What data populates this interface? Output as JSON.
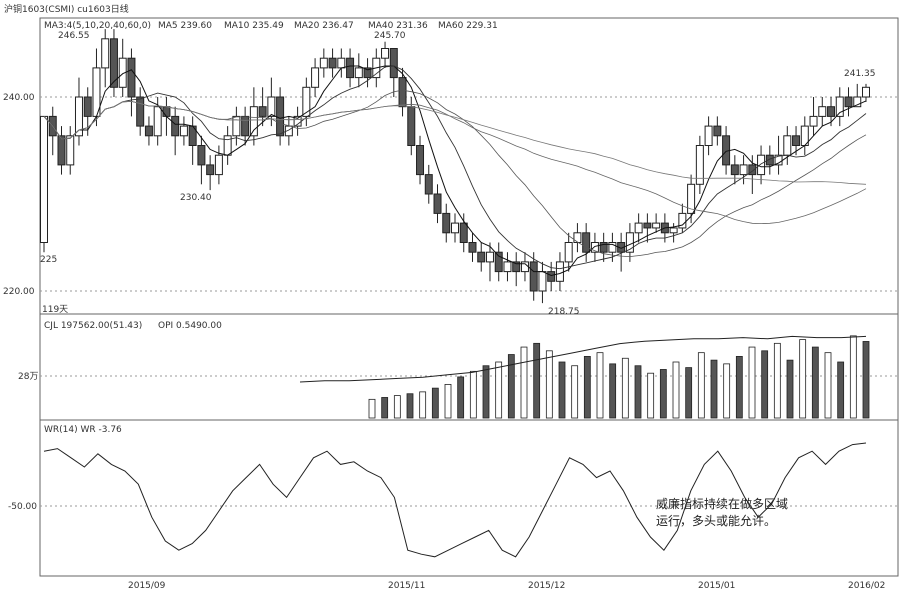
{
  "header": {
    "window_label": "沪铜1603(CSMI) cu1603日线",
    "ma_legend": "MA3:4(5,10,20,40,60,0)",
    "ma5": "MA5 239.60",
    "ma10": "MA10 235.49",
    "ma20": "MA20 236.47",
    "ma40": "MA40 231.36",
    "ma60": "MA60 229.31"
  },
  "price_panel": {
    "y_ticks": [
      "240.00",
      "220.00"
    ],
    "annotations": [
      "246.55",
      "245.70",
      "241.35",
      "230.40",
      "218.75",
      "225"
    ]
  },
  "volume_panel": {
    "days_label": "119天",
    "legend_cjl": "CJL 197562.00(51.43)",
    "legend_opi": "OPI 0.5490.00",
    "y_tick": "28万"
  },
  "wr_panel": {
    "legend": "WR(14) WR -3.76",
    "y_tick": "-50.00",
    "note_line1": "威廉指标持续在做多区域",
    "note_line2": "运行，多头或能允许。"
  },
  "x_axis": {
    "ticks": [
      "2015/09",
      "2015/11",
      "2015/12",
      "2015/01",
      "2016/02"
    ]
  },
  "colors": {
    "up": "#ffffff",
    "down": "#555555",
    "line": "#222222",
    "grid": "#9a9a9a"
  },
  "chart_data": {
    "type": "candlestick",
    "title": "",
    "xlabel": "",
    "ylabel": "",
    "ylim": [
      216,
      250
    ],
    "candles": [
      [
        225,
        238,
        224,
        225
      ],
      [
        238,
        236,
        239,
        234
      ],
      [
        236,
        233,
        237,
        232
      ],
      [
        233,
        236,
        237,
        232
      ],
      [
        236,
        240,
        242,
        235
      ],
      [
        240,
        238,
        241,
        236
      ],
      [
        238,
        243,
        245,
        237
      ],
      [
        243,
        246,
        247,
        241
      ],
      [
        246,
        241,
        247,
        240
      ],
      [
        241,
        244,
        246,
        240
      ],
      [
        244,
        240,
        245,
        238
      ],
      [
        240,
        237,
        241,
        236
      ],
      [
        237,
        236,
        238,
        235
      ],
      [
        236,
        239,
        240,
        235
      ],
      [
        239,
        238,
        240,
        236
      ],
      [
        238,
        236,
        239,
        234
      ],
      [
        236,
        237,
        238,
        235
      ],
      [
        237,
        235,
        238,
        233
      ],
      [
        235,
        233,
        236,
        231
      ],
      [
        233,
        232,
        234,
        230.4
      ],
      [
        232,
        234,
        235,
        231
      ],
      [
        234,
        236,
        237,
        233
      ],
      [
        236,
        238,
        239,
        235
      ],
      [
        238,
        236,
        239,
        235
      ],
      [
        236,
        239,
        241,
        235
      ],
      [
        239,
        238,
        241,
        237
      ],
      [
        238,
        240,
        242,
        237
      ],
      [
        240,
        236,
        241,
        235
      ],
      [
        236,
        237,
        238,
        235
      ],
      [
        237,
        238,
        239,
        236
      ],
      [
        238,
        241,
        242,
        237
      ],
      [
        241,
        243,
        244,
        240
      ],
      [
        243,
        244,
        245,
        242
      ],
      [
        244,
        243,
        245,
        242
      ],
      [
        243,
        244,
        245,
        242
      ],
      [
        244,
        242,
        245,
        241
      ],
      [
        242,
        243,
        244.5,
        241
      ],
      [
        243,
        242,
        244,
        241
      ],
      [
        242,
        244,
        245,
        241
      ],
      [
        244,
        245,
        245.7,
        243
      ],
      [
        245,
        242,
        245,
        240
      ],
      [
        242,
        239,
        243,
        238
      ],
      [
        239,
        235,
        240,
        234
      ],
      [
        235,
        232,
        236,
        231
      ],
      [
        232,
        230,
        233,
        229
      ],
      [
        230,
        228,
        231,
        227
      ],
      [
        228,
        226,
        229,
        225
      ],
      [
        226,
        227,
        228,
        225
      ],
      [
        227,
        225,
        228,
        224
      ],
      [
        225,
        224,
        226,
        223
      ],
      [
        224,
        223,
        225,
        222
      ],
      [
        223,
        224,
        225,
        221
      ],
      [
        224,
        222,
        225,
        221
      ],
      [
        222,
        223,
        224,
        221
      ],
      [
        223,
        222,
        224,
        220.5
      ],
      [
        222,
        223,
        224,
        221
      ],
      [
        223,
        220,
        224,
        219
      ],
      [
        220,
        222,
        223,
        218.75
      ],
      [
        222,
        221,
        223,
        220
      ],
      [
        221,
        223,
        224,
        220
      ],
      [
        223,
        225,
        226,
        222
      ],
      [
        225,
        226,
        227,
        224
      ],
      [
        226,
        224,
        227,
        223
      ],
      [
        224,
        225,
        226,
        223
      ],
      [
        225,
        224,
        226,
        223
      ],
      [
        224,
        225,
        226,
        223
      ],
      [
        225,
        224,
        226,
        222
      ],
      [
        224,
        226,
        227,
        223
      ],
      [
        226,
        227,
        228,
        225
      ],
      [
        227,
        226.5,
        228,
        225
      ],
      [
        226.5,
        227,
        228,
        226
      ],
      [
        227,
        226,
        228,
        225
      ],
      [
        226,
        226.5,
        227,
        225
      ],
      [
        226.5,
        228,
        229,
        226
      ],
      [
        228,
        231,
        232,
        227
      ],
      [
        231,
        235,
        236,
        230
      ],
      [
        235,
        237,
        238,
        234
      ],
      [
        237,
        236,
        238,
        235
      ],
      [
        236,
        233,
        237,
        232
      ],
      [
        233,
        232,
        234,
        231
      ],
      [
        232,
        233,
        234,
        231
      ],
      [
        233,
        232,
        234,
        230
      ],
      [
        232,
        234,
        235,
        231
      ],
      [
        234,
        233,
        235,
        232
      ],
      [
        233,
        234,
        236,
        232
      ],
      [
        234,
        236,
        237,
        233
      ],
      [
        236,
        235,
        237,
        234
      ],
      [
        235,
        237,
        238,
        234
      ],
      [
        237,
        238,
        240,
        236
      ],
      [
        238,
        239,
        240,
        237
      ],
      [
        239,
        238,
        240,
        237
      ],
      [
        238,
        240,
        241,
        237
      ],
      [
        240,
        239,
        241,
        238
      ],
      [
        239,
        240,
        241.35,
        239
      ],
      [
        240,
        241,
        241.35,
        239.5
      ]
    ],
    "volume": [
      10,
      11,
      12,
      13,
      14,
      16,
      18,
      22,
      25,
      28,
      30,
      34,
      38,
      40,
      36,
      30,
      28,
      33,
      35,
      29,
      32,
      28,
      24,
      26,
      30,
      27,
      35,
      31,
      29,
      33,
      38,
      36,
      40,
      31,
      42,
      38,
      35,
      30,
      44,
      41
    ],
    "open_interest": [
      30,
      31,
      31,
      32,
      33,
      34,
      36,
      38,
      42,
      46,
      50,
      54,
      58,
      62,
      64,
      65,
      66,
      66,
      67,
      66,
      68,
      67,
      67,
      68
    ],
    "wr": [
      -10,
      -8,
      -15,
      -22,
      -12,
      -20,
      -25,
      -35,
      -60,
      -78,
      -85,
      -80,
      -70,
      -55,
      -40,
      -30,
      -20,
      -35,
      -45,
      -30,
      -15,
      -10,
      -20,
      -18,
      -25,
      -30,
      -45,
      -85,
      -88,
      -90,
      -85,
      -80,
      -75,
      -70,
      -85,
      -90,
      -75,
      -55,
      -35,
      -15,
      -20,
      -30,
      -25,
      -40,
      -60,
      -75,
      -85,
      -70,
      -40,
      -20,
      -10,
      -25,
      -45,
      -60,
      -50,
      -30,
      -15,
      -10,
      -20,
      -10,
      -5,
      -3.76
    ]
  }
}
